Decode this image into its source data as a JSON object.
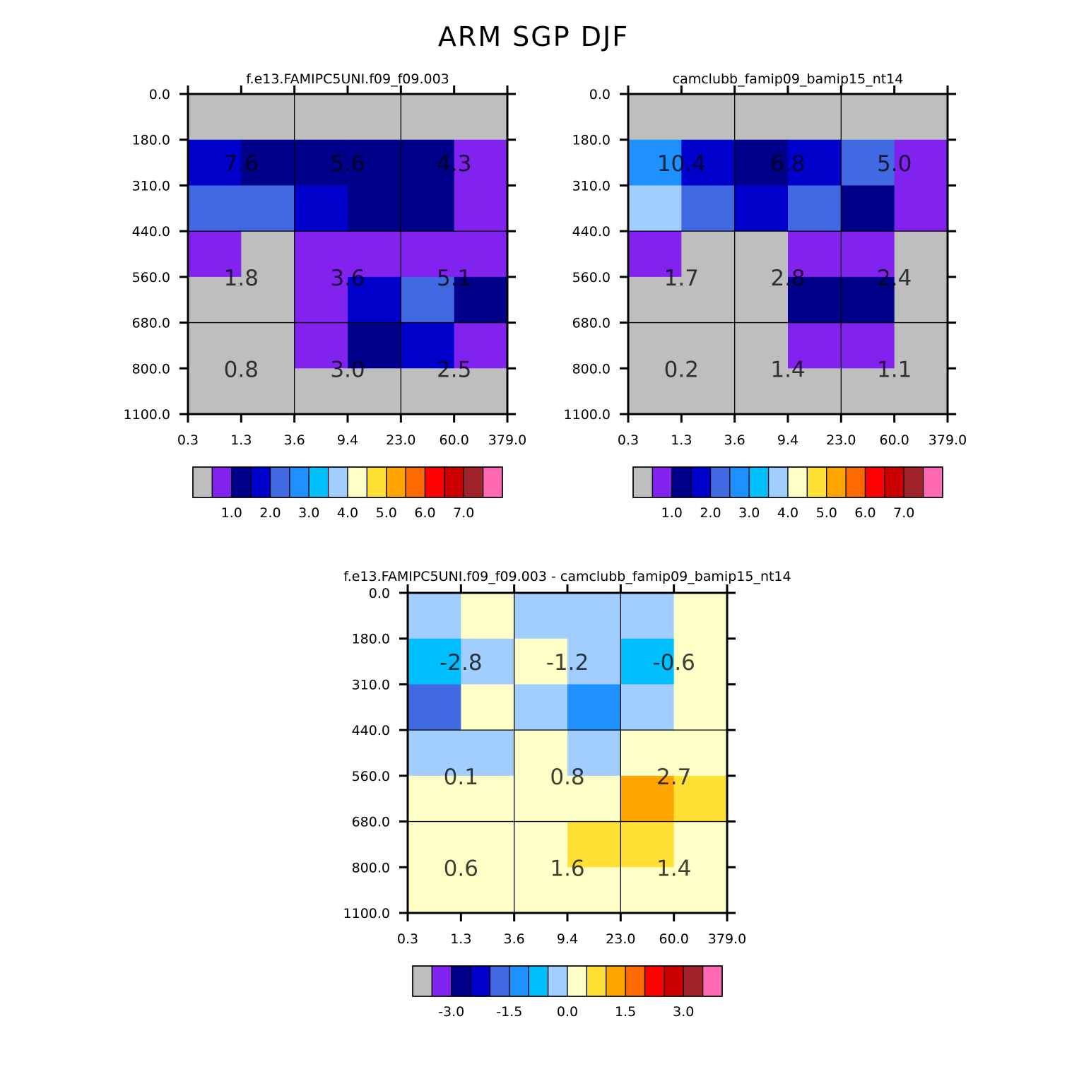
{
  "title": "ARM SGP DJF",
  "chart_data": [
    {
      "type": "heatmap",
      "title": "f.e13.FAMIPC5UNI.f09_f09.003",
      "x_ticks": [
        "0.3",
        "1.3",
        "3.6",
        "9.4",
        "23.0",
        "60.0",
        "379.0"
      ],
      "y_ticks": [
        "0.0",
        "180.0",
        "310.0",
        "440.0",
        "560.0",
        "680.0",
        "800.0",
        "1100.0"
      ],
      "cells": [
        [
          "gray",
          "gray",
          "gray",
          "gray",
          "gray",
          "gray"
        ],
        [
          "blue",
          "navy",
          "navy",
          "navy",
          "navy",
          "purple"
        ],
        [
          "royal",
          "royal",
          "blue",
          "navy",
          "navy",
          "purple"
        ],
        [
          "purple",
          "gray",
          "purple",
          "purple",
          "purple",
          "purple"
        ],
        [
          "gray",
          "gray",
          "purple",
          "blue",
          "royal",
          "navy"
        ],
        [
          "gray",
          "gray",
          "purple",
          "navy",
          "blue",
          "purple"
        ],
        [
          "gray",
          "gray",
          "gray",
          "gray",
          "gray",
          "gray"
        ]
      ],
      "values": [
        [
          "7.6",
          "5.6",
          "4.3"
        ],
        [
          "1.8",
          "3.6",
          "5.1"
        ],
        [
          "0.8",
          "3.0",
          "2.5"
        ]
      ],
      "colorbar_colors": [
        "#bebebe",
        "#8122ee",
        "#00008b",
        "#0000cd",
        "#4169e1",
        "#1e90ff",
        "#00bfff",
        "#a2cdff",
        "#ffffc8",
        "#ffe135",
        "#ffa500",
        "#ff6a00",
        "#ff0000",
        "#cd0000",
        "#a0222a",
        "#ff69b4"
      ],
      "colorbar_labels": [
        "1.0",
        "2.0",
        "3.0",
        "4.0",
        "5.0",
        "6.0",
        "7.0"
      ]
    },
    {
      "type": "heatmap",
      "title": "camclubb_famip09_bamip15_nt14",
      "x_ticks": [
        "0.3",
        "1.3",
        "3.6",
        "9.4",
        "23.0",
        "60.0",
        "379.0"
      ],
      "y_ticks": [
        "0.0",
        "180.0",
        "310.0",
        "440.0",
        "560.0",
        "680.0",
        "800.0",
        "1100.0"
      ],
      "cells": [
        [
          "gray",
          "gray",
          "gray",
          "gray",
          "gray",
          "gray"
        ],
        [
          "dodger",
          "blue",
          "navy",
          "blue",
          "royal",
          "purple"
        ],
        [
          "light",
          "royal",
          "blue",
          "royal",
          "navy",
          "purple"
        ],
        [
          "purple",
          "gray",
          "gray",
          "purple",
          "purple",
          "gray"
        ],
        [
          "gray",
          "gray",
          "gray",
          "navy",
          "navy",
          "gray"
        ],
        [
          "gray",
          "gray",
          "gray",
          "purple",
          "purple",
          "gray"
        ],
        [
          "gray",
          "gray",
          "gray",
          "gray",
          "gray",
          "gray"
        ]
      ],
      "values": [
        [
          "10.4",
          "6.8",
          "5.0"
        ],
        [
          "1.7",
          "2.8",
          "2.4"
        ],
        [
          "0.2",
          "1.4",
          "1.1"
        ]
      ],
      "colorbar_colors": [
        "#bebebe",
        "#8122ee",
        "#00008b",
        "#0000cd",
        "#4169e1",
        "#1e90ff",
        "#00bfff",
        "#a2cdff",
        "#ffffc8",
        "#ffe135",
        "#ffa500",
        "#ff6a00",
        "#ff0000",
        "#cd0000",
        "#a0222a",
        "#ff69b4"
      ],
      "colorbar_labels": [
        "1.0",
        "2.0",
        "3.0",
        "4.0",
        "5.0",
        "6.0",
        "7.0"
      ]
    },
    {
      "type": "heatmap",
      "title": "f.e13.FAMIPC5UNI.f09_f09.003 - camclubb_famip09_bamip15_nt14",
      "x_ticks": [
        "0.3",
        "1.3",
        "3.6",
        "9.4",
        "23.0",
        "60.0",
        "379.0"
      ],
      "y_ticks": [
        "0.0",
        "180.0",
        "310.0",
        "440.0",
        "560.0",
        "680.0",
        "800.0",
        "1100.0"
      ],
      "cells": [
        [
          "light",
          "cream",
          "light",
          "light",
          "light",
          "cream"
        ],
        [
          "deepsky",
          "light",
          "cream",
          "light",
          "deepsky",
          "cream"
        ],
        [
          "royal",
          "cream",
          "light",
          "dodger",
          "light",
          "cream"
        ],
        [
          "light",
          "light",
          "cream",
          "light",
          "cream",
          "cream"
        ],
        [
          "cream",
          "cream",
          "cream",
          "cream",
          "orange",
          "yellow"
        ],
        [
          "cream",
          "cream",
          "cream",
          "yellow",
          "yellow",
          "cream"
        ],
        [
          "cream",
          "cream",
          "cream",
          "cream",
          "cream",
          "cream"
        ]
      ],
      "values": [
        [
          "-2.8",
          "-1.2",
          "-0.6"
        ],
        [
          "0.1",
          "0.8",
          "2.7"
        ],
        [
          "0.6",
          "1.6",
          "1.4"
        ]
      ],
      "colorbar_colors": [
        "#bebebe",
        "#8122ee",
        "#00008b",
        "#0000cd",
        "#4169e1",
        "#1e90ff",
        "#00bfff",
        "#a2cdff",
        "#ffffc8",
        "#ffe135",
        "#ffa500",
        "#ff6a00",
        "#ff0000",
        "#cd0000",
        "#a0222a",
        "#ff69b4"
      ],
      "colorbar_labels": [
        "-3.0",
        "-1.5",
        "0.0",
        "1.5",
        "3.0"
      ]
    }
  ],
  "palette": {
    "gray": "#bebebe",
    "purple": "#8122ee",
    "navy": "#00008b",
    "blue": "#0000cd",
    "royal": "#4169e1",
    "dodger": "#1e90ff",
    "deepsky": "#00bfff",
    "light": "#a2cdff",
    "cream": "#ffffc8",
    "yellow": "#ffe135",
    "orange": "#ffa500"
  }
}
